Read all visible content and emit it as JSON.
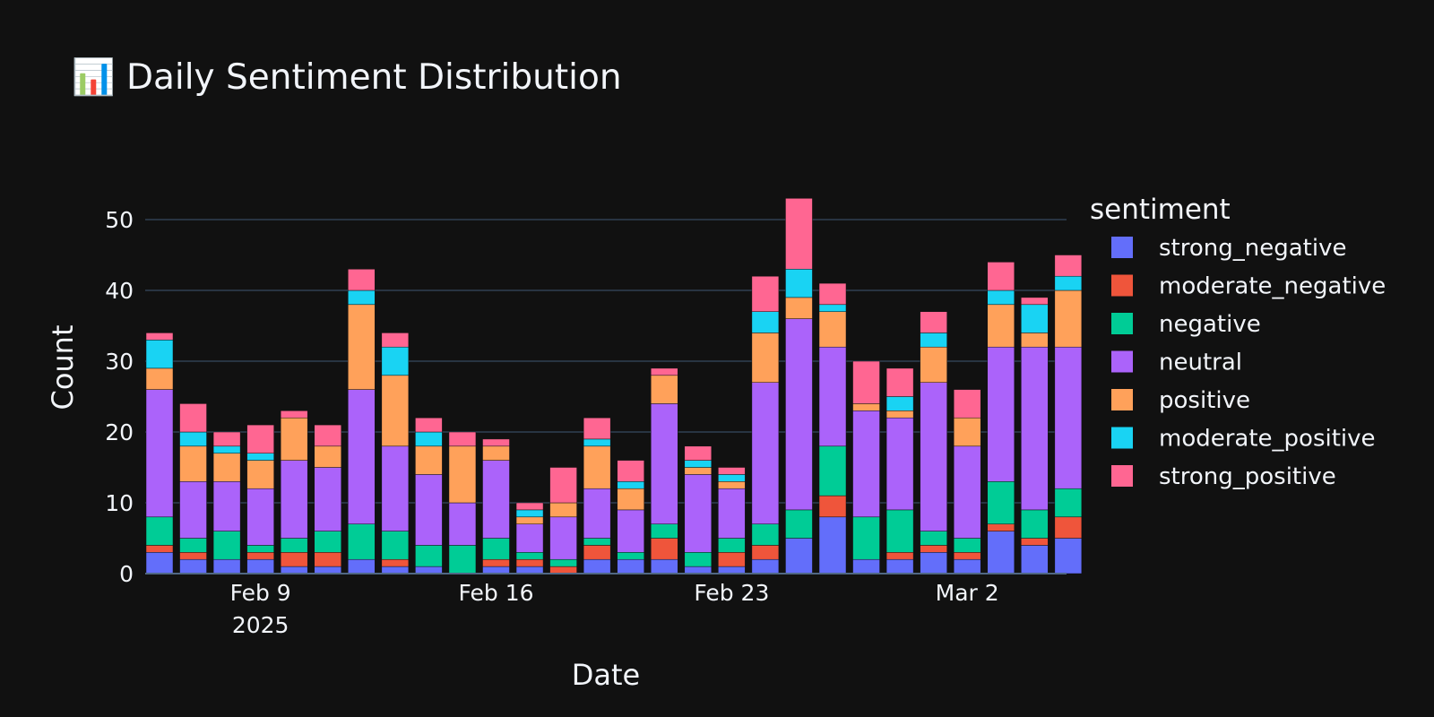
{
  "chart_data": {
    "type": "bar",
    "barmode": "stack",
    "title": "📊 Daily Sentiment Distribution",
    "xlabel": "Date",
    "ylabel": "Count",
    "ylim": [
      0,
      55
    ],
    "y_ticks": [
      0,
      10,
      20,
      30,
      40,
      50
    ],
    "x_tick_labels": [
      {
        "label": "Feb 9",
        "sub": "2025",
        "date": "2025-02-09"
      },
      {
        "label": "Feb 16",
        "sub": "",
        "date": "2025-02-16"
      },
      {
        "label": "Feb 23",
        "sub": "",
        "date": "2025-02-23"
      },
      {
        "label": "Mar 2",
        "sub": "",
        "date": "2025-03-02"
      }
    ],
    "grid": true,
    "legend": {
      "title": "sentiment",
      "position": "right"
    },
    "dates": [
      "2025-02-06",
      "2025-02-07",
      "2025-02-08",
      "2025-02-09",
      "2025-02-10",
      "2025-02-11",
      "2025-02-12",
      "2025-02-13",
      "2025-02-14",
      "2025-02-15",
      "2025-02-16",
      "2025-02-17",
      "2025-02-18",
      "2025-02-19",
      "2025-02-20",
      "2025-02-21",
      "2025-02-22",
      "2025-02-23",
      "2025-02-24",
      "2025-02-25",
      "2025-02-26",
      "2025-02-27",
      "2025-02-28",
      "2025-03-01",
      "2025-03-02",
      "2025-03-03",
      "2025-03-04",
      "2025-03-05",
      "2025-03-06"
    ],
    "series": [
      {
        "name": "strong_negative",
        "color": "#636efa",
        "values": [
          3,
          2,
          2,
          2,
          1,
          1,
          2,
          1,
          1,
          0,
          1,
          1,
          0,
          2,
          2,
          2,
          1,
          1,
          2,
          5,
          8,
          2,
          2,
          3,
          2,
          6,
          4,
          5,
          0
        ]
      },
      {
        "name": "moderate_negative",
        "color": "#ef553b",
        "values": [
          1,
          1,
          0,
          1,
          2,
          2,
          0,
          1,
          0,
          0,
          1,
          1,
          1,
          2,
          0,
          3,
          0,
          2,
          2,
          0,
          3,
          0,
          1,
          1,
          1,
          1,
          1,
          3,
          0
        ]
      },
      {
        "name": "negative",
        "color": "#00cc96",
        "values": [
          4,
          2,
          4,
          1,
          2,
          3,
          5,
          4,
          3,
          4,
          3,
          1,
          1,
          1,
          1,
          2,
          2,
          2,
          3,
          4,
          7,
          6,
          6,
          2,
          2,
          6,
          4,
          4,
          0
        ]
      },
      {
        "name": "neutral",
        "color": "#ab63fa",
        "values": [
          18,
          8,
          7,
          8,
          11,
          9,
          19,
          12,
          10,
          6,
          11,
          4,
          6,
          7,
          6,
          17,
          11,
          7,
          20,
          27,
          14,
          15,
          13,
          21,
          13,
          19,
          23,
          20,
          0
        ]
      },
      {
        "name": "positive",
        "color": "#ffa15a",
        "values": [
          3,
          5,
          4,
          4,
          6,
          3,
          12,
          10,
          4,
          8,
          2,
          1,
          2,
          6,
          3,
          4,
          1,
          1,
          7,
          3,
          5,
          1,
          1,
          5,
          4,
          6,
          2,
          8,
          0
        ]
      },
      {
        "name": "moderate_positive",
        "color": "#19d3f3",
        "values": [
          4,
          2,
          1,
          1,
          0,
          0,
          2,
          4,
          2,
          0,
          0,
          1,
          0,
          1,
          1,
          0,
          1,
          1,
          3,
          4,
          1,
          0,
          2,
          2,
          0,
          2,
          4,
          2,
          0
        ]
      },
      {
        "name": "strong_positive",
        "color": "#ff6692",
        "values": [
          1,
          4,
          2,
          4,
          1,
          3,
          3,
          2,
          2,
          2,
          1,
          1,
          5,
          3,
          3,
          1,
          2,
          1,
          5,
          10,
          3,
          6,
          4,
          3,
          4,
          4,
          1,
          3,
          0
        ]
      }
    ]
  }
}
